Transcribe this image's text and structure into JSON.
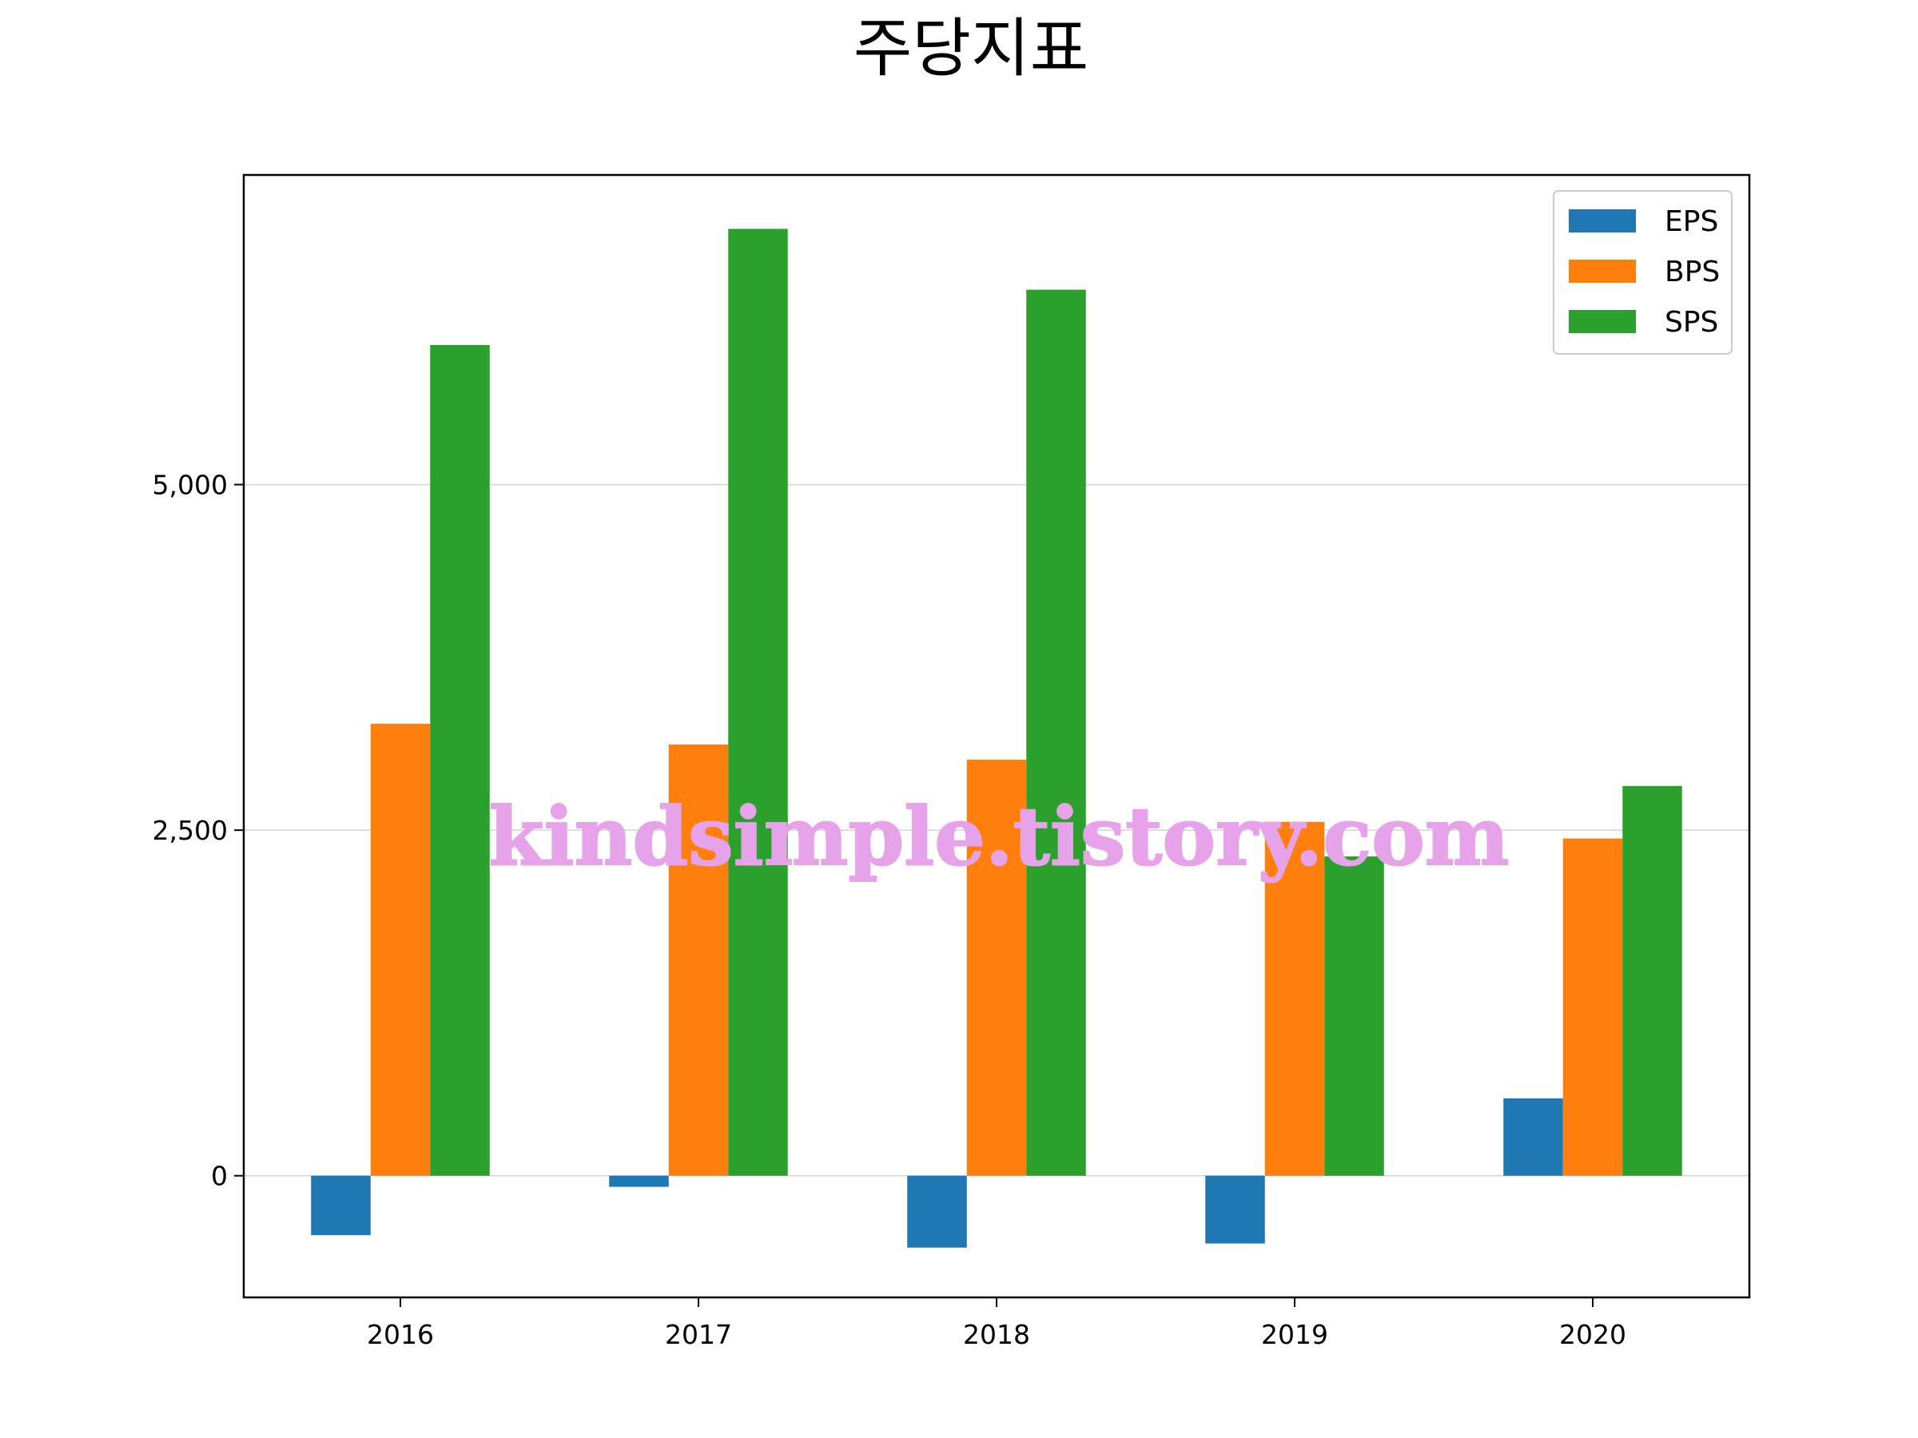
{
  "chart_data": {
    "type": "bar",
    "title": "주당지표",
    "categories": [
      "2016",
      "2017",
      "2018",
      "2019",
      "2020"
    ],
    "series": [
      {
        "name": "EPS",
        "color": "#1f77b4",
        "values": [
          -430,
          -80,
          -520,
          -490,
          560
        ]
      },
      {
        "name": "BPS",
        "color": "#ff7f0e",
        "values": [
          3270,
          3120,
          3010,
          2560,
          2440
        ]
      },
      {
        "name": "SPS",
        "color": "#2ca02c",
        "values": [
          6010,
          6850,
          6410,
          2310,
          2820
        ]
      }
    ],
    "ylim": [
      -880,
      7240
    ],
    "yticks": [
      0,
      2500,
      5000
    ],
    "ytick_labels": [
      "0",
      "2,500",
      "5,000"
    ],
    "grid": "horizontal",
    "legend_position": "top-right",
    "xlabel": "",
    "ylabel": ""
  },
  "watermark": "kindsimple.tistory.com"
}
